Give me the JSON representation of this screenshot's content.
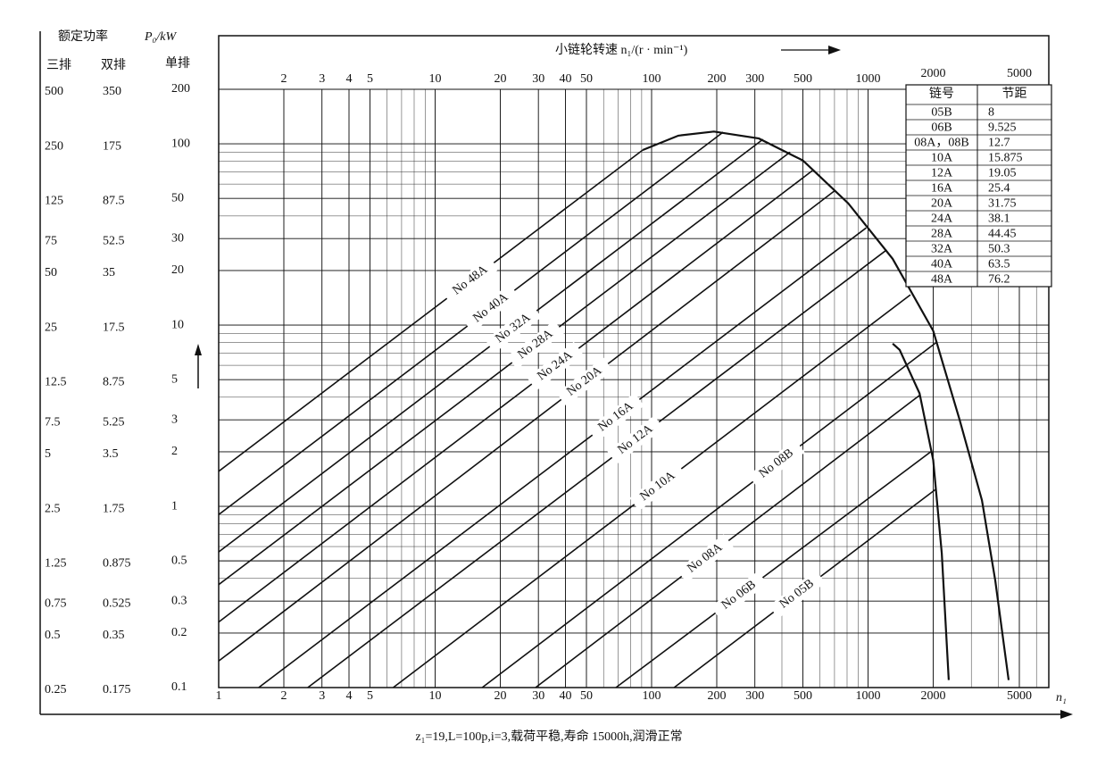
{
  "chart_data": {
    "type": "line",
    "x_title": "小链轮转速 n₁/(r · min⁻¹)",
    "x_label": "n₁",
    "y_title": "额定功率",
    "y_unit": "P₀/kW",
    "y_columns": [
      "三排",
      "双排",
      "单排"
    ],
    "xscale": "log",
    "yscale": "log",
    "grid": true,
    "color": "#111111",
    "xlim": [
      1,
      6840
    ],
    "ylim": [
      0.1,
      200
    ],
    "xticks": [
      1,
      2,
      3,
      4,
      5,
      10,
      20,
      30,
      40,
      50,
      100,
      200,
      300,
      500,
      1000,
      2000,
      5000
    ],
    "yticks": [
      0.1,
      0.2,
      0.3,
      0.5,
      1,
      2,
      3,
      5,
      10,
      20,
      30,
      50,
      100,
      200
    ],
    "yticks_double": [
      0.175,
      0.35,
      0.525,
      0.875,
      1.75,
      3.5,
      5.25,
      8.75,
      17.5,
      35,
      52.5,
      87.5,
      175,
      350
    ],
    "yticks_triple": [
      0.25,
      0.5,
      0.75,
      1.25,
      2.5,
      5,
      7.5,
      12.5,
      25,
      50,
      75,
      125,
      250,
      500
    ],
    "series": [
      {
        "name": "No 48A",
        "x": [
          1,
          91
        ],
        "values": [
          1.56,
          92.5
        ]
      },
      {
        "name": "No 40A",
        "x": [
          1,
          214
        ],
        "values": [
          0.9,
          116
        ]
      },
      {
        "name": "No 32A",
        "x": [
          1,
          327
        ],
        "values": [
          0.56,
          106
        ]
      },
      {
        "name": "No 28A",
        "x": [
          1,
          436
        ],
        "values": [
          0.37,
          90
        ]
      },
      {
        "name": "No 24A",
        "x": [
          1,
          552
        ],
        "values": [
          0.23,
          71
        ]
      },
      {
        "name": "No 20A",
        "x": [
          1,
          700
        ],
        "values": [
          0.14,
          55
        ]
      },
      {
        "name": "No 16A",
        "x": [
          1.53,
          980
        ],
        "values": [
          0.1,
          34.4
        ]
      },
      {
        "name": "No 12A",
        "x": [
          2.58,
          1220
        ],
        "values": [
          0.1,
          26
        ]
      },
      {
        "name": "No 10A",
        "x": [
          6.4,
          1570
        ],
        "values": [
          0.1,
          14.7
        ]
      },
      {
        "name": "No 08B",
        "x": [
          16.5,
          2090
        ],
        "values": [
          0.1,
          8.1
        ]
      },
      {
        "name": "No 08A",
        "x": [
          29.1,
          1730
        ],
        "values": [
          0.1,
          4.1
        ]
      },
      {
        "name": "No 06B",
        "x": [
          68.4,
          1950
        ],
        "values": [
          0.1,
          2.0
        ]
      },
      {
        "name": "No 05B",
        "x": [
          127,
          2050
        ],
        "values": [
          0.1,
          1.24
        ]
      },
      {
        "x": [
          91,
          133,
          194,
          313,
          500,
          810,
          1300,
          2000,
          2650,
          3360,
          3870,
          4460
        ],
        "values": [
          92.5,
          111,
          117,
          107,
          81,
          47,
          23.2,
          9.3,
          3.0,
          1.08,
          0.39,
          0.11
        ]
      },
      {
        "x": [
          1300,
          1400,
          1730,
          2000,
          2190,
          2360
        ],
        "values": [
          7.9,
          7.3,
          4.2,
          1.8,
          0.55,
          0.11
        ]
      }
    ],
    "table": {
      "header": [
        "链号",
        "节距"
      ],
      "rows": [
        [
          "05B",
          8
        ],
        [
          "06B",
          9.525
        ],
        [
          "08A，08B",
          12.7
        ],
        [
          "10A",
          15.875
        ],
        [
          "12A",
          19.05
        ],
        [
          "16A",
          25.4
        ],
        [
          "20A",
          31.75
        ],
        [
          "24A",
          38.1
        ],
        [
          "28A",
          44.45
        ],
        [
          "32A",
          50.3
        ],
        [
          "40A",
          63.5
        ],
        [
          "48A",
          76.2
        ]
      ]
    },
    "caption": "z₁=19,L=100p,i=3,载荷平稳,寿命 15000h,润滑正常"
  }
}
